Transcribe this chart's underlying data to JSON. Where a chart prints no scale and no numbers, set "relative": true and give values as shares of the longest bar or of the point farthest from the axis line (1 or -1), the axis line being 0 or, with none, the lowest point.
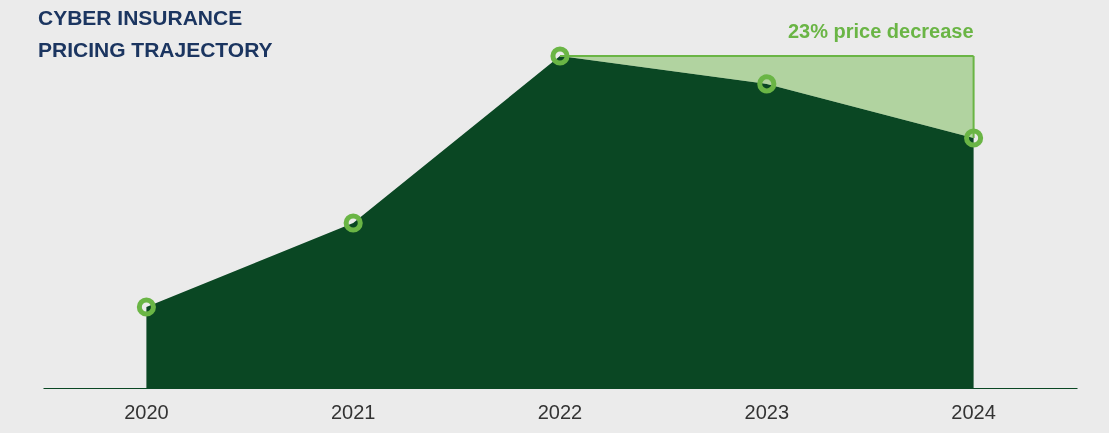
{
  "chart_data": {
    "type": "area",
    "title": "CYBER INSURANCE\nPRICING TRAJECTORY",
    "relative": true,
    "categories": [
      "2020",
      "2021",
      "2022",
      "2023",
      "2024"
    ],
    "series": [
      {
        "color": "#0a4723",
        "values": [
          0.244,
          0.497,
          1,
          0.916,
          0.753
        ],
        "lower": [
          null,
          null,
          1,
          0.916,
          0.753
        ],
        "upper": [
          null,
          null,
          1,
          1,
          1
        ]
      }
    ],
    "annotations": [
      {
        "text": "23% price decrease",
        "x": "2024",
        "y": 1
      }
    ],
    "marker": "circle",
    "grid": false
  }
}
